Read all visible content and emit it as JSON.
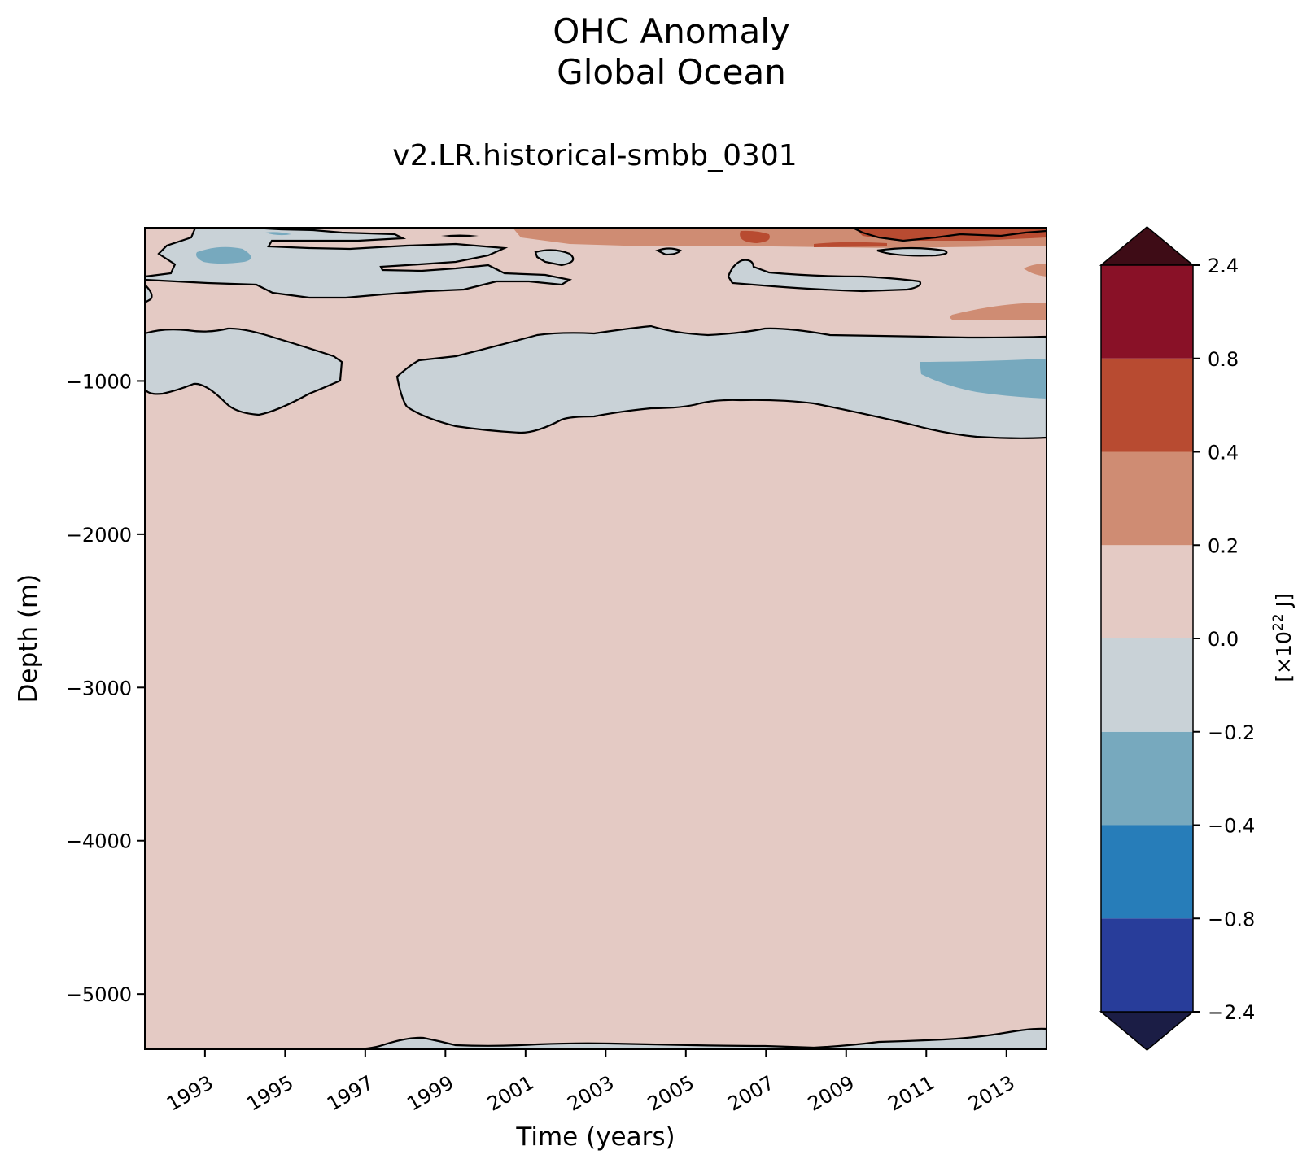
{
  "chart_data": {
    "type": "heatmap",
    "subtype": "filled-contour",
    "title": "OHC Anomaly\nGlobal Ocean",
    "title_lines": [
      "OHC Anomaly",
      "Global Ocean"
    ],
    "subtitle": "v2.LR.historical-smbb_0301",
    "xlabel": "Time (years)",
    "ylabel": "Depth (m)",
    "xlim": [
      1991.5,
      2014.0
    ],
    "ylim": [
      -5360,
      0
    ],
    "xticks": [
      "1993",
      "1995",
      "1997",
      "1999",
      "2001",
      "2003",
      "2005",
      "2007",
      "2009",
      "2011",
      "2013"
    ],
    "yticks": [
      "−1000",
      "−2000",
      "−3000",
      "−4000",
      "−5000"
    ],
    "colorbar": {
      "label_base": "[×10",
      "label_exp": "22",
      "label_unit": " J]",
      "levels": [
        -2.4,
        -0.8,
        -0.4,
        -0.2,
        0.0,
        0.2,
        0.4,
        0.8,
        2.4
      ],
      "tick_labels": [
        "−2.4",
        "−0.8",
        "−0.4",
        "−0.2",
        "0.0",
        "0.2",
        "0.4",
        "0.8",
        "2.4"
      ],
      "colors": [
        "#283d9a",
        "#277db9",
        "#77a9be",
        "#c9d2d7",
        "#e4cac4",
        "#cf8c73",
        "#b84b31",
        "#891127"
      ],
      "extend_min_color": "#1b1d45",
      "extend_max_color": "#3e0c16",
      "extend": "both"
    },
    "background_color": "#e4cac4",
    "grid": false,
    "regions": [
      {
        "name": "mid-depth-cool-band-west",
        "level_range": [
          -0.2,
          0.0
        ],
        "x": [
          1991.5,
          1996.4
        ],
        "depth": [
          -680,
          -1220
        ]
      },
      {
        "name": "mid-depth-cool-band-east",
        "level_range": [
          -0.2,
          0.0
        ],
        "x": [
          1997.6,
          2014.0
        ],
        "depth": [
          -650,
          -1380
        ]
      },
      {
        "name": "mid-depth-stronger-cool",
        "level_range": [
          -0.4,
          -0.2
        ],
        "x": [
          2011.0,
          2014.0
        ],
        "depth": [
          -870,
          -1130
        ]
      },
      {
        "name": "upper-cool-band",
        "level_range": [
          -0.2,
          0.0
        ],
        "x": [
          1991.5,
          2002.5
        ],
        "depth": [
          0,
          -460
        ]
      },
      {
        "name": "upper-stronger-cool",
        "level_range": [
          -0.4,
          -0.2
        ],
        "x": [
          1992.8,
          1993.5
        ],
        "depth": [
          -140,
          -230
        ]
      },
      {
        "name": "near-surface-warm",
        "level_range": [
          0.2,
          0.8
        ],
        "x": [
          2000.5,
          2014.0
        ],
        "depth": [
          0,
          -130
        ]
      },
      {
        "name": "subsurface-warm-east",
        "level_range": [
          0.2,
          0.4
        ],
        "x": [
          2011.8,
          2014.0
        ],
        "depth": [
          -490,
          -600
        ]
      },
      {
        "name": "bottom-cool-layer",
        "level_range": [
          -0.2,
          0.0
        ],
        "x": [
          1997.0,
          2014.0
        ],
        "depth": [
          -5230,
          -5360
        ]
      }
    ]
  }
}
